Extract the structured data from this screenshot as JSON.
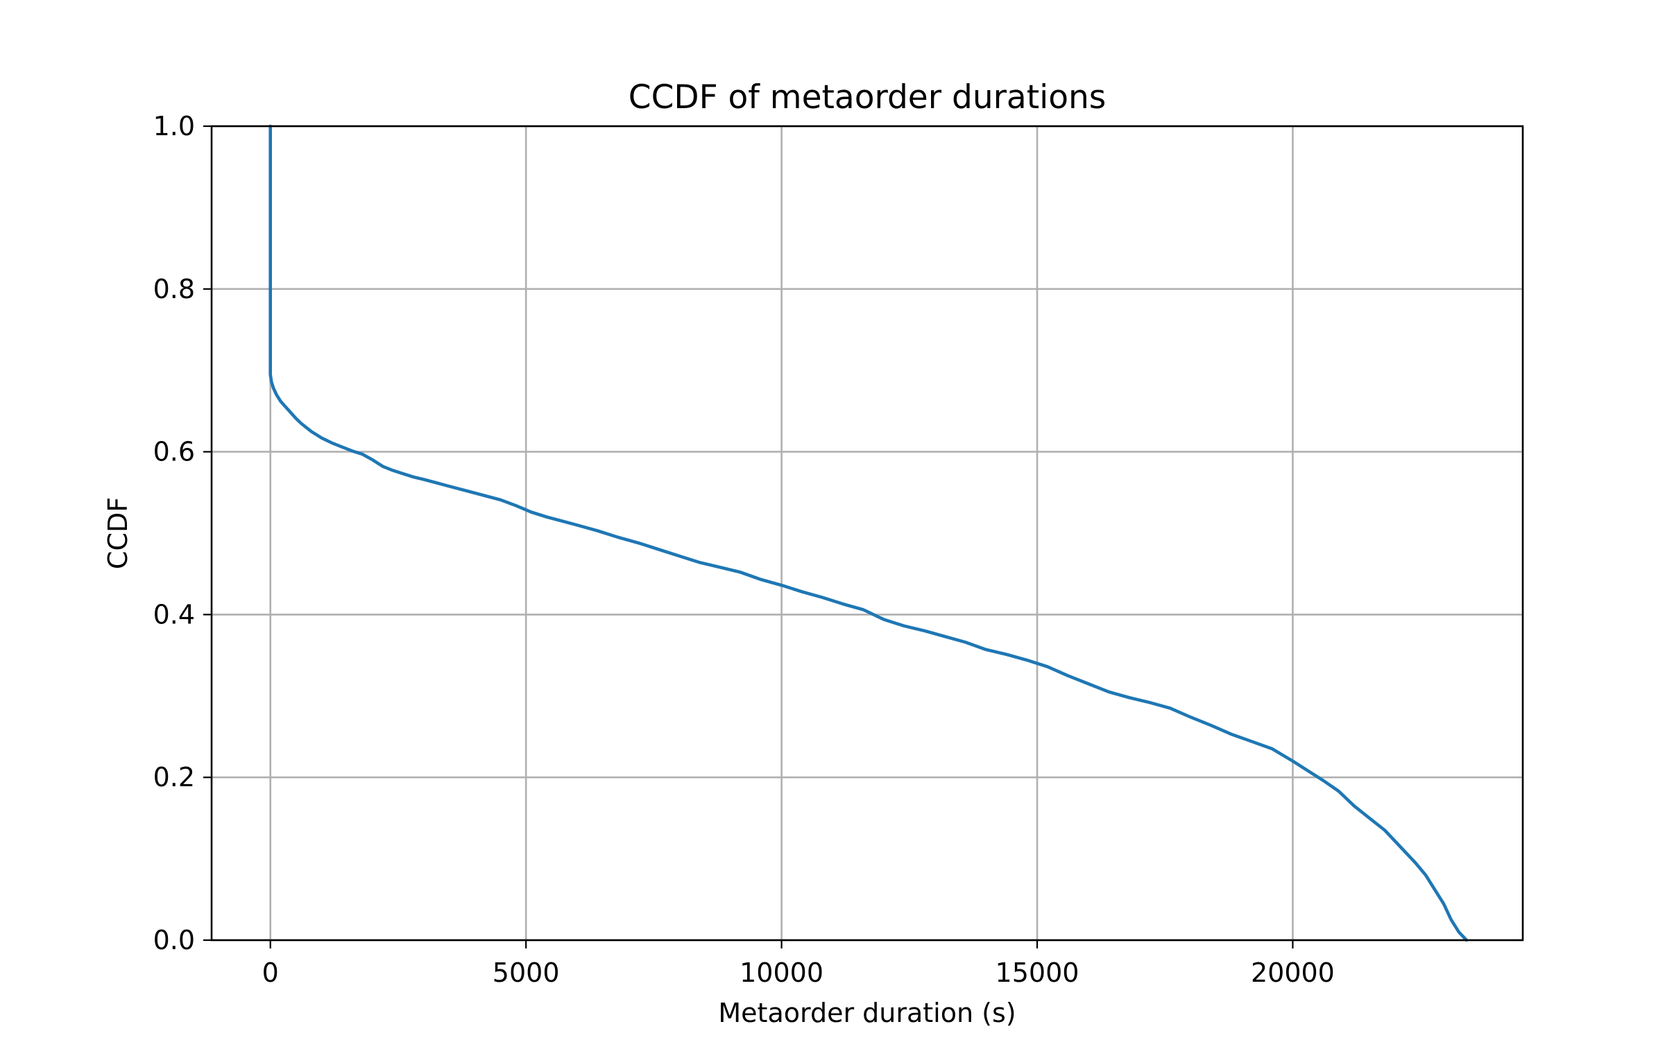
{
  "chart_data": {
    "type": "line",
    "title": "CCDF of metaorder durations",
    "xlabel": "Metaorder duration (s)",
    "ylabel": "CCDF",
    "xlim": [
      -1150,
      24500
    ],
    "ylim": [
      0.0,
      1.0
    ],
    "xticks": [
      0,
      5000,
      10000,
      15000,
      20000
    ],
    "xtick_labels": [
      "0",
      "5000",
      "10000",
      "15000",
      "20000"
    ],
    "yticks": [
      0.0,
      0.2,
      0.4,
      0.6,
      0.8,
      1.0
    ],
    "ytick_labels": [
      "0.0",
      "0.2",
      "0.4",
      "0.6",
      "0.8",
      "1.0"
    ],
    "grid": true,
    "legend": false,
    "series": [
      {
        "color": "#1f77b4",
        "x": [
          0,
          0,
          20,
          60,
          120,
          200,
          300,
          400,
          500,
          600,
          700,
          800,
          900,
          1000,
          1200,
          1400,
          1600,
          1800,
          2000,
          2200,
          2400,
          2600,
          2800,
          3000,
          3300,
          3600,
          3900,
          4200,
          4500,
          4800,
          5100,
          5400,
          5700,
          6000,
          6400,
          6800,
          7200,
          7600,
          8000,
          8400,
          8800,
          9200,
          9600,
          10000,
          10400,
          10800,
          11200,
          11600,
          12000,
          12400,
          12800,
          13200,
          13600,
          14000,
          14400,
          14800,
          15200,
          15600,
          16000,
          16400,
          16800,
          17200,
          17600,
          18000,
          18400,
          18800,
          19200,
          19600,
          20000,
          20300,
          20600,
          20900,
          21200,
          21500,
          21800,
          22100,
          22400,
          22600,
          22800,
          22950,
          23100,
          23250,
          23400
        ],
        "y": [
          1.0,
          0.695,
          0.686,
          0.678,
          0.67,
          0.662,
          0.655,
          0.648,
          0.641,
          0.635,
          0.63,
          0.625,
          0.621,
          0.617,
          0.611,
          0.606,
          0.601,
          0.597,
          0.59,
          0.582,
          0.577,
          0.573,
          0.569,
          0.566,
          0.561,
          0.556,
          0.551,
          0.546,
          0.541,
          0.534,
          0.526,
          0.52,
          0.515,
          0.51,
          0.503,
          0.495,
          0.488,
          0.48,
          0.472,
          0.464,
          0.458,
          0.452,
          0.443,
          0.436,
          0.428,
          0.421,
          0.413,
          0.406,
          0.394,
          0.386,
          0.38,
          0.373,
          0.366,
          0.357,
          0.351,
          0.344,
          0.336,
          0.325,
          0.315,
          0.305,
          0.298,
          0.292,
          0.285,
          0.274,
          0.264,
          0.253,
          0.244,
          0.235,
          0.22,
          0.208,
          0.196,
          0.183,
          0.165,
          0.15,
          0.135,
          0.115,
          0.095,
          0.08,
          0.06,
          0.045,
          0.025,
          0.01,
          0.0
        ]
      }
    ]
  }
}
